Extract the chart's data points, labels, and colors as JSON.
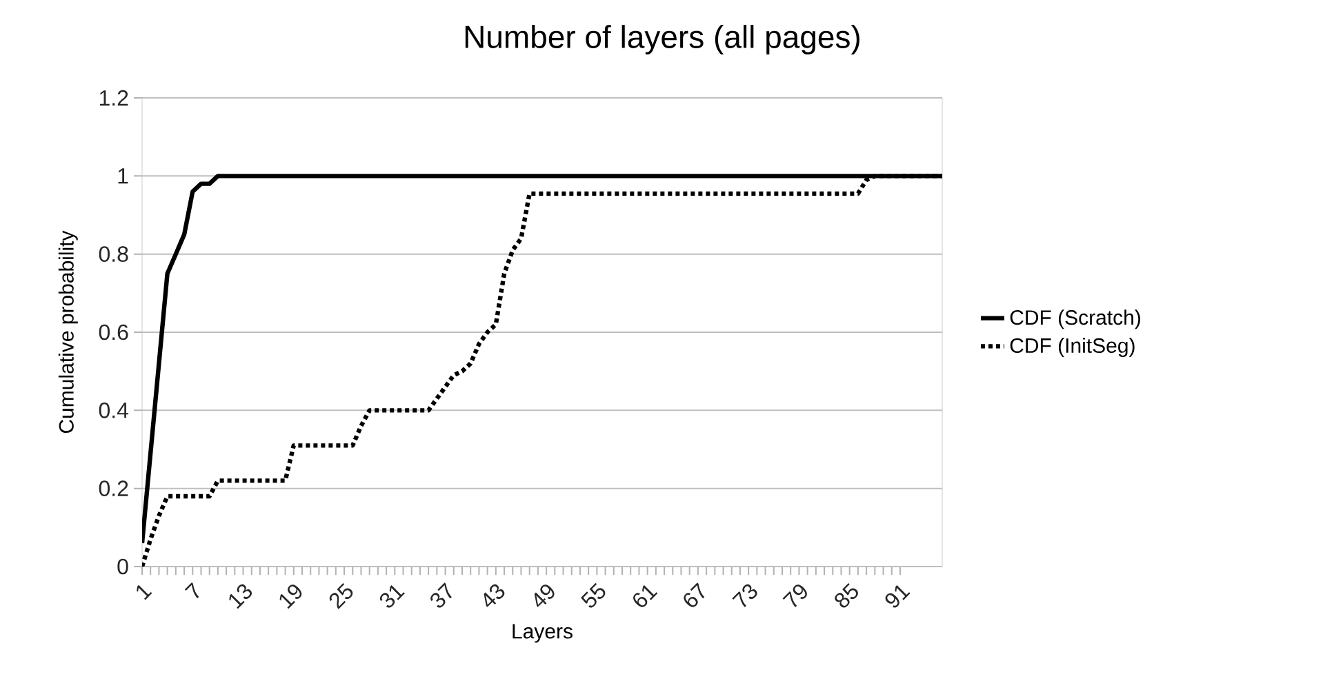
{
  "chart_data": {
    "type": "line",
    "title": "Number of layers (all pages)",
    "xlabel": "Layers",
    "ylabel": "Cumulative probability",
    "xlim": [
      1,
      96
    ],
    "ylim": [
      0,
      1.2
    ],
    "xticks": [
      1,
      7,
      13,
      19,
      25,
      31,
      37,
      43,
      49,
      55,
      61,
      67,
      73,
      79,
      85,
      91
    ],
    "yticks": [
      0,
      0.2,
      0.4,
      0.6,
      0.8,
      1,
      1.2
    ],
    "grid": "y",
    "legend": "right",
    "series": [
      {
        "name": "CDF (Scratch)",
        "color": "#000000",
        "line_style": "solid",
        "x": [
          1,
          2,
          3,
          4,
          5,
          6,
          7,
          8,
          9,
          10,
          96
        ],
        "values": [
          0.06,
          0.29,
          0.52,
          0.75,
          0.8,
          0.85,
          0.96,
          0.98,
          0.98,
          1.0,
          1.0
        ]
      },
      {
        "name": "CDF (InitSeg)",
        "color": "#000000",
        "line_style": "dotted",
        "x": [
          1,
          2,
          3,
          4,
          9,
          10,
          18,
          19,
          26,
          27,
          28,
          35,
          36,
          37,
          38,
          39,
          40,
          41,
          42,
          43,
          44,
          45,
          46,
          47,
          86,
          87,
          88,
          96
        ],
        "values": [
          0,
          0.07,
          0.13,
          0.18,
          0.18,
          0.22,
          0.22,
          0.31,
          0.31,
          0.36,
          0.4,
          0.4,
          0.43,
          0.46,
          0.49,
          0.5,
          0.52,
          0.57,
          0.6,
          0.62,
          0.75,
          0.81,
          0.84,
          0.955,
          0.955,
          0.99,
          1.0,
          1.0
        ]
      }
    ]
  }
}
